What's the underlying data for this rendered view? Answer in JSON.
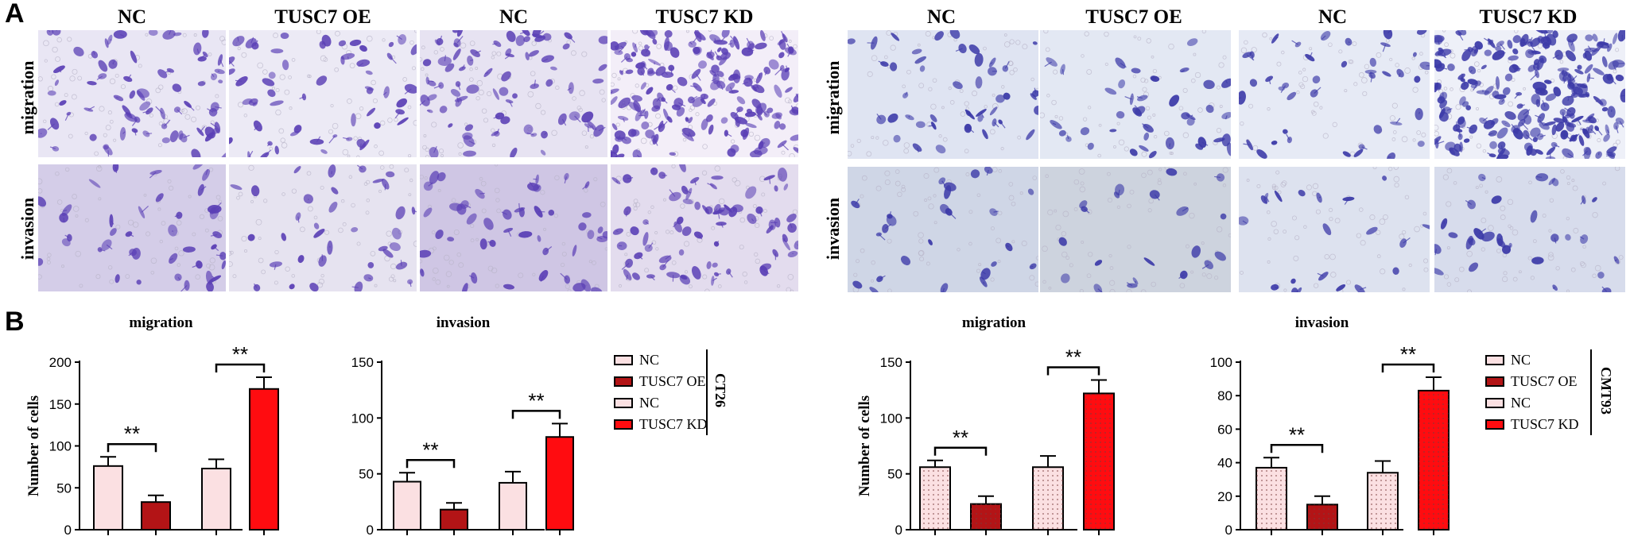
{
  "panel_letters": [
    "A",
    "B"
  ],
  "micrographs": {
    "left_columns": [
      "NC",
      "TUSC7 OE",
      "NC",
      "TUSC7 KD"
    ],
    "right_columns": [
      "NC",
      "TUSC7 OE",
      "NC",
      "TUSC7 KD"
    ],
    "rows": [
      "migration",
      "invasion"
    ]
  },
  "legends": [
    {
      "cell_line": "CT26",
      "items": [
        "NC",
        "TUSC7 OE",
        "NC",
        "TUSC7 KD"
      ]
    },
    {
      "cell_line": "CMT93",
      "items": [
        "NC",
        "TUSC7 OE",
        "NC",
        "TUSC7 KD"
      ]
    }
  ],
  "colors": {
    "nc_fill": "#fbe0e2",
    "oe_fill": "#b31416",
    "kd_fill": "#ff0c10",
    "stain": "#5a3fb5"
  },
  "chart_data": [
    {
      "type": "bar",
      "title": "migration",
      "ylabel": "Number of cells",
      "categories": [
        "NC",
        "TUSC7 OE",
        "NC",
        "TUSC7 KD"
      ],
      "values": [
        76,
        33,
        73,
        168
      ],
      "errors": [
        11,
        8,
        11,
        14
      ],
      "ylim": [
        0,
        200
      ],
      "yticks": [
        0,
        50,
        100,
        150,
        200
      ],
      "significance": [
        {
          "pair": [
            0,
            1
          ],
          "label": "**"
        },
        {
          "pair": [
            2,
            3
          ],
          "label": "**"
        }
      ]
    },
    {
      "type": "bar",
      "title": "invasion",
      "ylabel": "",
      "categories": [
        "NC",
        "TUSC7 OE",
        "NC",
        "TUSC7 KD"
      ],
      "values": [
        43,
        18,
        42,
        83
      ],
      "errors": [
        8,
        6,
        10,
        12
      ],
      "ylim": [
        0,
        150
      ],
      "yticks": [
        0,
        50,
        100,
        150
      ],
      "significance": [
        {
          "pair": [
            0,
            1
          ],
          "label": "**"
        },
        {
          "pair": [
            2,
            3
          ],
          "label": "**"
        }
      ]
    },
    {
      "type": "bar",
      "title": "migration",
      "ylabel": "Number of cells",
      "categories": [
        "NC",
        "TUSC7 OE",
        "NC",
        "TUSC7 KD"
      ],
      "values": [
        56,
        23,
        56,
        122
      ],
      "errors": [
        6,
        7,
        10,
        12
      ],
      "ylim": [
        0,
        150
      ],
      "yticks": [
        0,
        50,
        100,
        150
      ],
      "significance": [
        {
          "pair": [
            0,
            1
          ],
          "label": "**"
        },
        {
          "pair": [
            2,
            3
          ],
          "label": "**"
        }
      ]
    },
    {
      "type": "bar",
      "title": "invasion",
      "ylabel": "",
      "categories": [
        "NC",
        "TUSC7 OE",
        "NC",
        "TUSC7 KD"
      ],
      "values": [
        37,
        15,
        34,
        83
      ],
      "errors": [
        6,
        5,
        7,
        8
      ],
      "ylim": [
        0,
        100
      ],
      "yticks": [
        0,
        20,
        40,
        60,
        80,
        100
      ],
      "significance": [
        {
          "pair": [
            0,
            1
          ],
          "label": "**"
        },
        {
          "pair": [
            2,
            3
          ],
          "label": "**"
        }
      ]
    }
  ]
}
